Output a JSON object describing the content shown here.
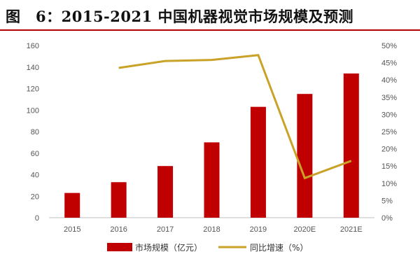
{
  "title": "图　6：2015-2021 中国机器视觉市场规模及预测",
  "colors": {
    "bar": "#c00000",
    "line": "#c9a227",
    "title_rule": "#b50000"
  },
  "chart_data": {
    "type": "bar+line",
    "categories": [
      "2015",
      "2016",
      "2017",
      "2018",
      "2019",
      "2020E",
      "2021E"
    ],
    "series": [
      {
        "name": "市场规模（亿元）",
        "type": "bar",
        "axis": "left",
        "values": [
          23,
          33,
          48,
          70,
          103,
          115,
          134
        ]
      },
      {
        "name": "同比增速（%）",
        "type": "line",
        "axis": "right",
        "values": [
          null,
          43.5,
          45.5,
          45.8,
          47.2,
          11.5,
          16.5
        ]
      }
    ],
    "y_left": {
      "min": 0,
      "max": 160,
      "step": 20,
      "tick_labels": [
        "0",
        "20",
        "40",
        "60",
        "80",
        "100",
        "120",
        "140",
        "160"
      ]
    },
    "y_right": {
      "min": 0,
      "max": 50,
      "step": 5,
      "tick_labels": [
        "0%",
        "5%",
        "10%",
        "15%",
        "20%",
        "25%",
        "30%",
        "35%",
        "40%",
        "45%",
        "50%"
      ]
    },
    "grid": false,
    "legend_position": "bottom"
  }
}
